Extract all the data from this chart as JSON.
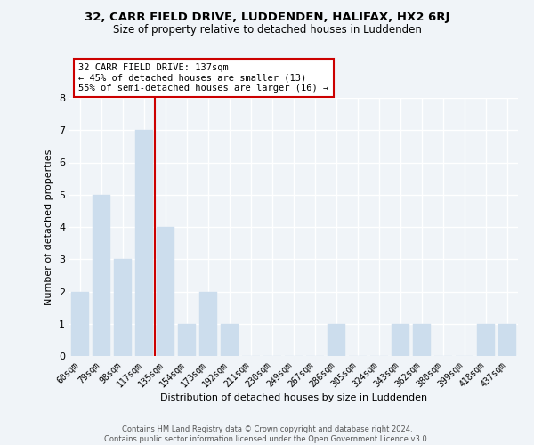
{
  "title": "32, CARR FIELD DRIVE, LUDDENDEN, HALIFAX, HX2 6RJ",
  "subtitle": "Size of property relative to detached houses in Luddenden",
  "xlabel": "Distribution of detached houses by size in Luddenden",
  "ylabel": "Number of detached properties",
  "footer_line1": "Contains HM Land Registry data © Crown copyright and database right 2024.",
  "footer_line2": "Contains public sector information licensed under the Open Government Licence v3.0.",
  "bin_labels": [
    "60sqm",
    "79sqm",
    "98sqm",
    "117sqm",
    "135sqm",
    "154sqm",
    "173sqm",
    "192sqm",
    "211sqm",
    "230sqm",
    "249sqm",
    "267sqm",
    "286sqm",
    "305sqm",
    "324sqm",
    "343sqm",
    "362sqm",
    "380sqm",
    "399sqm",
    "418sqm",
    "437sqm"
  ],
  "bar_heights": [
    2,
    5,
    3,
    7,
    4,
    1,
    2,
    1,
    0,
    0,
    0,
    0,
    1,
    0,
    0,
    1,
    1,
    0,
    0,
    1,
    1
  ],
  "property_bin_index": 3.5,
  "bar_color": "#ccdded",
  "vline_color": "#cc0000",
  "annotation_text_line1": "32 CARR FIELD DRIVE: 137sqm",
  "annotation_text_line2": "← 45% of detached houses are smaller (13)",
  "annotation_text_line3": "55% of semi-detached houses are larger (16) →",
  "annotation_box_edgecolor": "#cc0000",
  "annotation_box_facecolor": "#ffffff",
  "ylim": [
    0,
    8
  ],
  "yticks": [
    0,
    1,
    2,
    3,
    4,
    5,
    6,
    7,
    8
  ],
  "background_color": "#f0f4f8"
}
